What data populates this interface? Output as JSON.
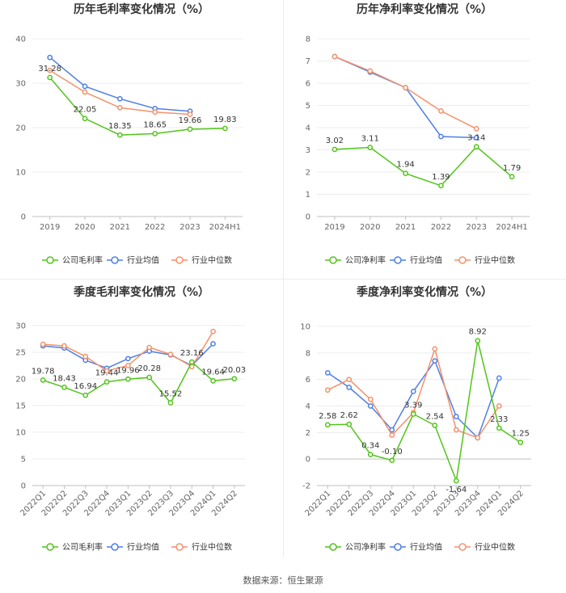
{
  "source": "数据来源：恒生聚源",
  "colors": {
    "company": "#52c41a",
    "industry_avg": "#4e7fe8",
    "industry_median": "#f4916a",
    "axis": "#bfbfbf",
    "grid": "#ececec",
    "tick": "#666666",
    "title": "#333333",
    "label": "#333333"
  },
  "chart_data": [
    {
      "type": "line",
      "title": "历年毛利率变化情况（%）",
      "categories": [
        "2019",
        "2020",
        "2021",
        "2022",
        "2023",
        "2024H1"
      ],
      "ylim": [
        0,
        40
      ],
      "yticks": [
        0,
        10,
        20,
        30,
        40
      ],
      "rotate_labels": false,
      "series": [
        {
          "name": "公司毛利率",
          "role": "company",
          "values": [
            31.28,
            22.05,
            18.35,
            18.65,
            19.66,
            19.83
          ],
          "labels": [
            "31.28",
            "22.05",
            "18.35",
            "18.65",
            "19.66",
            "19.83"
          ]
        },
        {
          "name": "行业均值",
          "role": "industry_avg",
          "values": [
            35.8,
            29.3,
            26.5,
            24.3,
            23.7,
            null
          ]
        },
        {
          "name": "行业中位数",
          "role": "industry_median",
          "values": [
            32.9,
            28.0,
            24.5,
            23.5,
            23.0,
            null
          ]
        }
      ]
    },
    {
      "type": "line",
      "title": "历年净利率变化情况（%）",
      "categories": [
        "2019",
        "2020",
        "2021",
        "2022",
        "2023",
        "2024H1"
      ],
      "ylim": [
        0,
        8
      ],
      "yticks": [
        0,
        1,
        2,
        3,
        4,
        5,
        6,
        7,
        8
      ],
      "rotate_labels": false,
      "series": [
        {
          "name": "公司净利率",
          "role": "company",
          "values": [
            3.02,
            3.11,
            1.94,
            1.39,
            3.14,
            1.79
          ],
          "labels": [
            "3.02",
            "3.11",
            "1.94",
            "1.39",
            "3.14",
            "1.79"
          ]
        },
        {
          "name": "行业均值",
          "role": "industry_avg",
          "values": [
            7.2,
            6.5,
            5.8,
            3.6,
            3.55,
            null
          ]
        },
        {
          "name": "行业中位数",
          "role": "industry_median",
          "values": [
            7.2,
            6.55,
            5.8,
            4.75,
            3.95,
            null
          ]
        }
      ]
    },
    {
      "type": "line",
      "title": "季度毛利率变化情况（%）",
      "categories": [
        "2022Q1",
        "2022Q2",
        "2022Q3",
        "2022Q4",
        "2023Q1",
        "2023Q2",
        "2023Q3",
        "2023Q4",
        "2024Q1",
        "2024Q2"
      ],
      "ylim": [
        0,
        30
      ],
      "yticks": [
        0,
        5,
        10,
        15,
        20,
        25,
        30
      ],
      "rotate_labels": true,
      "series": [
        {
          "name": "公司毛利率",
          "role": "company",
          "values": [
            19.78,
            18.43,
            16.94,
            19.44,
            19.96,
            20.28,
            15.52,
            23.16,
            19.64,
            20.03
          ],
          "labels": [
            "19.78",
            "18.43",
            "16.94",
            "19.44",
            "19.96",
            "20.28",
            "15.52",
            "23.16",
            "19.64",
            "20.03"
          ]
        },
        {
          "name": "行业均值",
          "role": "industry_avg",
          "values": [
            26.2,
            25.8,
            23.5,
            22.0,
            23.8,
            25.2,
            24.5,
            22.5,
            26.6,
            null
          ]
        },
        {
          "name": "行业中位数",
          "role": "industry_median",
          "values": [
            26.5,
            26.2,
            24.2,
            21.5,
            22.5,
            25.9,
            24.6,
            22.3,
            28.9,
            null
          ]
        }
      ]
    },
    {
      "type": "line",
      "title": "季度净利率变化情况（%）",
      "categories": [
        "2022Q1",
        "2022Q2",
        "2022Q3",
        "2022Q4",
        "2023Q1",
        "2023Q2",
        "2023Q3",
        "2023Q4",
        "2024Q1",
        "2024Q2"
      ],
      "ylim": [
        -2,
        10
      ],
      "yticks": [
        -2,
        0,
        2,
        4,
        6,
        8,
        10
      ],
      "rotate_labels": true,
      "series": [
        {
          "name": "公司净利率",
          "role": "company",
          "values": [
            2.58,
            2.62,
            0.34,
            -0.1,
            3.39,
            2.54,
            -1.64,
            8.92,
            2.33,
            1.25
          ],
          "labels": [
            "2.58",
            "2.62",
            "0.34",
            "-0.10",
            "3.39",
            "2.54",
            "-1.64",
            "8.92",
            "2.33",
            "1.25"
          ]
        },
        {
          "name": "行业均值",
          "role": "industry_avg",
          "values": [
            6.5,
            5.4,
            4.0,
            2.2,
            5.1,
            7.4,
            3.2,
            1.6,
            6.1,
            null
          ]
        },
        {
          "name": "行业中位数",
          "role": "industry_median",
          "values": [
            5.2,
            6.0,
            4.5,
            1.8,
            3.5,
            8.3,
            2.2,
            1.6,
            4.0,
            null
          ]
        }
      ]
    }
  ]
}
